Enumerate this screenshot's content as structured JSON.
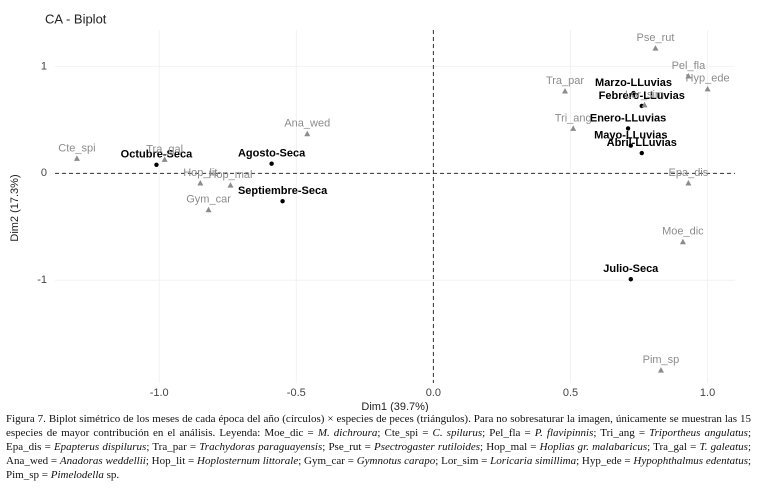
{
  "chart_data": {
    "type": "scatter",
    "title": "CA - Biplot",
    "x_label": "Dim1 (39.7%)",
    "y_label": "Dim2 (17.3%)",
    "xlim": [
      -1.38,
      1.1
    ],
    "xticks": [
      {
        "value": -1,
        "label": "-1.0"
      },
      {
        "value": -0.5,
        "label": "-0.5"
      },
      {
        "value": 0,
        "label": "0.0"
      },
      {
        "value": 0.5,
        "label": "0.5"
      },
      {
        "value": 1,
        "label": "1.0"
      }
    ],
    "ylim": [
      -1.96,
      1.34
    ],
    "yticks": [
      -1,
      0,
      1
    ],
    "series": [
      {
        "marker": "circle",
        "color": "#000000",
        "labels": [
          "Octubre-Seca",
          "Agosto-Seca",
          "Septiembre-Seca",
          "Marzo-LLuvias",
          "Febrero-LLuvias",
          "Enero-LLuvias",
          "Mayo-LLuvias",
          "Abril-LLuvias",
          "Julio-Seca"
        ],
        "x": [
          -1.01,
          -0.59,
          -0.55,
          0.73,
          0.76,
          0.71,
          0.72,
          0.76,
          0.72
        ],
        "y": [
          0.08,
          0.09,
          -0.26,
          0.75,
          0.63,
          0.42,
          0.26,
          0.19,
          -0.99
        ]
      },
      {
        "marker": "triangle",
        "color": "#8c8c8c",
        "labels": [
          "Pse_rut",
          "Pel_fla",
          "Hyp_ede",
          "Tra_par",
          "Lor_sim",
          "Tri_ang",
          "Epa_dis",
          "Moe_dic",
          "Pim_sp",
          "Ana_wed",
          "Cte_spi",
          "Tra_gal",
          "Hop_lit",
          "Hop_mal",
          "Gym_car"
        ],
        "x": [
          0.81,
          0.93,
          1.0,
          0.48,
          0.77,
          0.51,
          0.93,
          0.91,
          0.83,
          -0.46,
          -1.3,
          -0.98,
          -0.85,
          -0.74,
          -0.82
        ],
        "y": [
          1.17,
          0.91,
          0.79,
          0.77,
          0.64,
          0.42,
          -0.09,
          -0.64,
          -1.84,
          0.37,
          0.14,
          0.13,
          -0.09,
          -0.11,
          -0.34
        ]
      }
    ]
  },
  "caption": [
    {
      "text": "Figura 7. Biplot simétrico de los meses de cada época del año (círculos) × especies de peces (triángulos). Para no sobresaturar la imagen, únicamente se muestran las 15 especies de mayor contribución en el análisis. Leyenda: Moe_dic = "
    },
    {
      "text": "M. dichroura",
      "italic": true
    },
    {
      "text": "; Cte_spi = "
    },
    {
      "text": "C. spilurus",
      "italic": true
    },
    {
      "text": "; Pel_fla = "
    },
    {
      "text": "P. flavipinnis",
      "italic": true
    },
    {
      "text": "; Tri_ang = "
    },
    {
      "text": "Triportheus angulatus",
      "italic": true
    },
    {
      "text": "; Epa_dis = "
    },
    {
      "text": "Epapterus dispilurus",
      "italic": true
    },
    {
      "text": "; Tra_par = "
    },
    {
      "text": "Trachydoras paraguayensis",
      "italic": true
    },
    {
      "text": "; Pse_rut = "
    },
    {
      "text": "Psectrogaster rutiloides",
      "italic": true
    },
    {
      "text": "; Hop_mal = "
    },
    {
      "text": "Hoplias gr. malabaricus",
      "italic": true
    },
    {
      "text": "; Tra_gal = "
    },
    {
      "text": "T. galeatus",
      "italic": true
    },
    {
      "text": "; Ana_wed = "
    },
    {
      "text": "Anadoras weddellii",
      "italic": true
    },
    {
      "text": "; Hop_lit = "
    },
    {
      "text": "Hoplosternum littorale",
      "italic": true
    },
    {
      "text": "; Gym_car = "
    },
    {
      "text": "Gymnotus carapo",
      "italic": true
    },
    {
      "text": "; Lor_sim = "
    },
    {
      "text": "Loricaria simillima",
      "italic": true
    },
    {
      "text": "; Hyp_ede = "
    },
    {
      "text": "Hypophthalmus edentatus",
      "italic": true
    },
    {
      "text": "; Pim_sp = "
    },
    {
      "text": "Pimelodella",
      "italic": true
    },
    {
      "text": " sp."
    }
  ]
}
